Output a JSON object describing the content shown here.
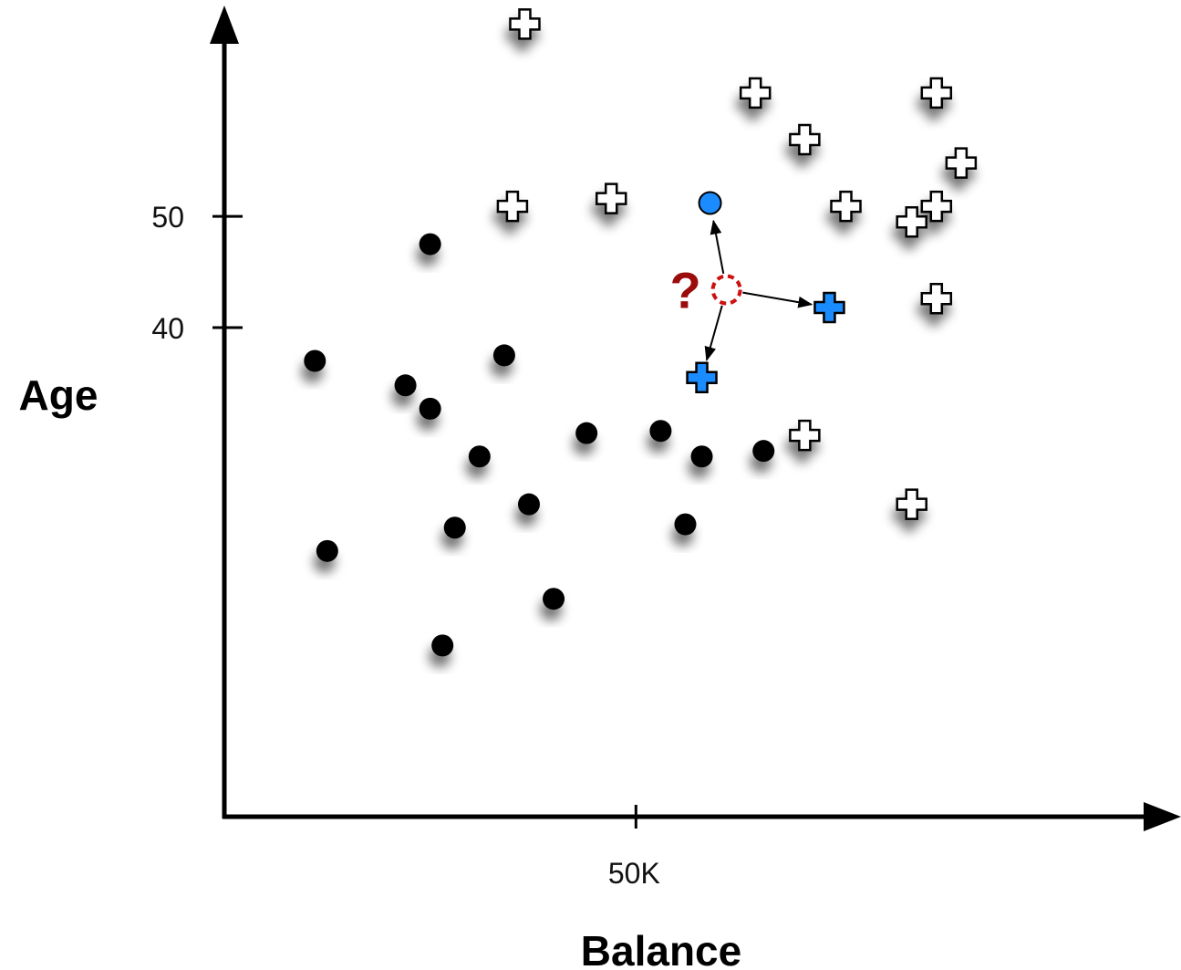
{
  "chart_data": {
    "type": "scatter",
    "title": "",
    "xlabel": "Balance",
    "ylabel": "Age",
    "x_ticks": [
      {
        "value": 50000,
        "label": "50K"
      }
    ],
    "y_ticks": [
      {
        "value": 40,
        "label": "40"
      },
      {
        "value": 50,
        "label": "50"
      }
    ],
    "xlim": [
      0,
      113000
    ],
    "ylim": [
      -4,
      67
    ],
    "grid": false,
    "legend": "none",
    "colors": {
      "dot": "#000000",
      "plus_fill": "#ffffff",
      "highlight": "#1a8cff",
      "query": "#cc1111",
      "question": "#9b0c0c"
    },
    "series": [
      {
        "marker": "dot",
        "points": [
          {
            "x": 25000,
            "y": 47.5
          },
          {
            "x": 11000,
            "y": 37
          },
          {
            "x": 22000,
            "y": 34.8
          },
          {
            "x": 25000,
            "y": 32.7
          },
          {
            "x": 34000,
            "y": 37.5
          },
          {
            "x": 31000,
            "y": 28.4
          },
          {
            "x": 44000,
            "y": 30.5
          },
          {
            "x": 53000,
            "y": 30.7
          },
          {
            "x": 58000,
            "y": 28.4
          },
          {
            "x": 65500,
            "y": 28.9
          },
          {
            "x": 37000,
            "y": 24.1
          },
          {
            "x": 28000,
            "y": 22.0
          },
          {
            "x": 56000,
            "y": 22.3
          },
          {
            "x": 12500,
            "y": 19.9
          },
          {
            "x": 40000,
            "y": 15.6
          },
          {
            "x": 26500,
            "y": 11.4
          }
        ]
      },
      {
        "marker": "plus",
        "points": [
          {
            "x": 36500,
            "y": 67.3
          },
          {
            "x": 64500,
            "y": 61.1
          },
          {
            "x": 86500,
            "y": 61.1
          },
          {
            "x": 70500,
            "y": 56.9
          },
          {
            "x": 89500,
            "y": 54.8
          },
          {
            "x": 47000,
            "y": 51.6
          },
          {
            "x": 35000,
            "y": 50.9
          },
          {
            "x": 75500,
            "y": 50.9
          },
          {
            "x": 86500,
            "y": 50.9
          },
          {
            "x": 83500,
            "y": 49.5
          },
          {
            "x": 86500,
            "y": 42.6
          },
          {
            "x": 70500,
            "y": 30.3
          },
          {
            "x": 83500,
            "y": 24.1
          }
        ]
      },
      {
        "marker": "dot-highlight",
        "points": [
          {
            "x": 59000,
            "y": 51.2
          }
        ]
      },
      {
        "marker": "plus-highlight",
        "points": [
          {
            "x": 73500,
            "y": 41.8
          },
          {
            "x": 58000,
            "y": 35.5
          }
        ]
      },
      {
        "marker": "query",
        "points": [
          {
            "x": 61000,
            "y": 43.4
          }
        ]
      }
    ],
    "annotations": [
      {
        "text": "?",
        "anchor": "query"
      }
    ],
    "neighbor_links": [
      {
        "to_series": 2,
        "to_point": 0
      },
      {
        "to_series": 3,
        "to_point": 0
      },
      {
        "to_series": 3,
        "to_point": 1
      }
    ]
  }
}
